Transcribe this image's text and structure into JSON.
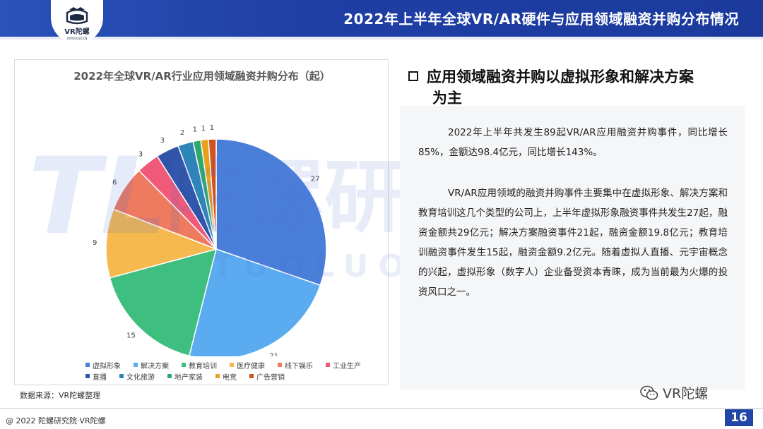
{
  "header": {
    "title": "2022年上半年全球VR/AR硬件与应用领域融资并购分布情况",
    "logo_text": "VR陀螺",
    "logo_subtext": "VRTUOLUO.CN"
  },
  "watermark": {
    "logo_text": "TL",
    "main_text": "陀螺研究院",
    "sub_text": "TUOLUO RESEARCH"
  },
  "colors": {
    "brand_blue": "#1f3fa6",
    "page_num_bg": "#2146a8"
  },
  "chart_data": {
    "type": "pie",
    "title": "2022年全球VR/AR行业应用领域融资并购分布（起）",
    "categories": [
      "虚拟形象",
      "解决方案",
      "教育培训",
      "医疗健康",
      "线下娱乐",
      "工业生产",
      "直播",
      "文化旅游",
      "地产家装",
      "电竞",
      "广告营销"
    ],
    "values": [
      27,
      21,
      15,
      9,
      6,
      3,
      3,
      2,
      1,
      1,
      1
    ],
    "colors": [
      "#4a7fd9",
      "#5aabf0",
      "#3fbf7f",
      "#f6b94f",
      "#ee7a60",
      "#f05a78",
      "#2f54a8",
      "#2d86b8",
      "#2fa86c",
      "#e8a11c",
      "#d1531f"
    ],
    "legend_position": "bottom"
  },
  "source_note": "数据来源：VR陀螺整理",
  "panel": {
    "heading_line1": "应用领域融资并购以虚拟形象和解决方案",
    "heading_line2": "为主",
    "paragraph1": "2022年上半年共发生89起VR/AR应用融资并购事件，同比增长85%，金额达98.4亿元，同比增长143%。",
    "paragraph2": "VR/AR应用领域的融资并购事件主要集中在虚拟形象、解决方案和教育培训这几个类型的公司上，上半年虚拟形象融资事件共发生27起，融资金额共29亿元；解决方案融资事件21起，融资金额19.8亿元；教育培训融资事件发生15起，融资金额9.2亿元。随着虚拟人直播、元宇宙概念的兴起，虚拟形象（数字人）企业备受资本青睐，成为当前最为火爆的投资风口之一。"
  },
  "footer": {
    "copyright": "@ 2022 陀螺研究院·VR陀螺",
    "wechat_label": "VR陀螺",
    "page_number": "16"
  }
}
